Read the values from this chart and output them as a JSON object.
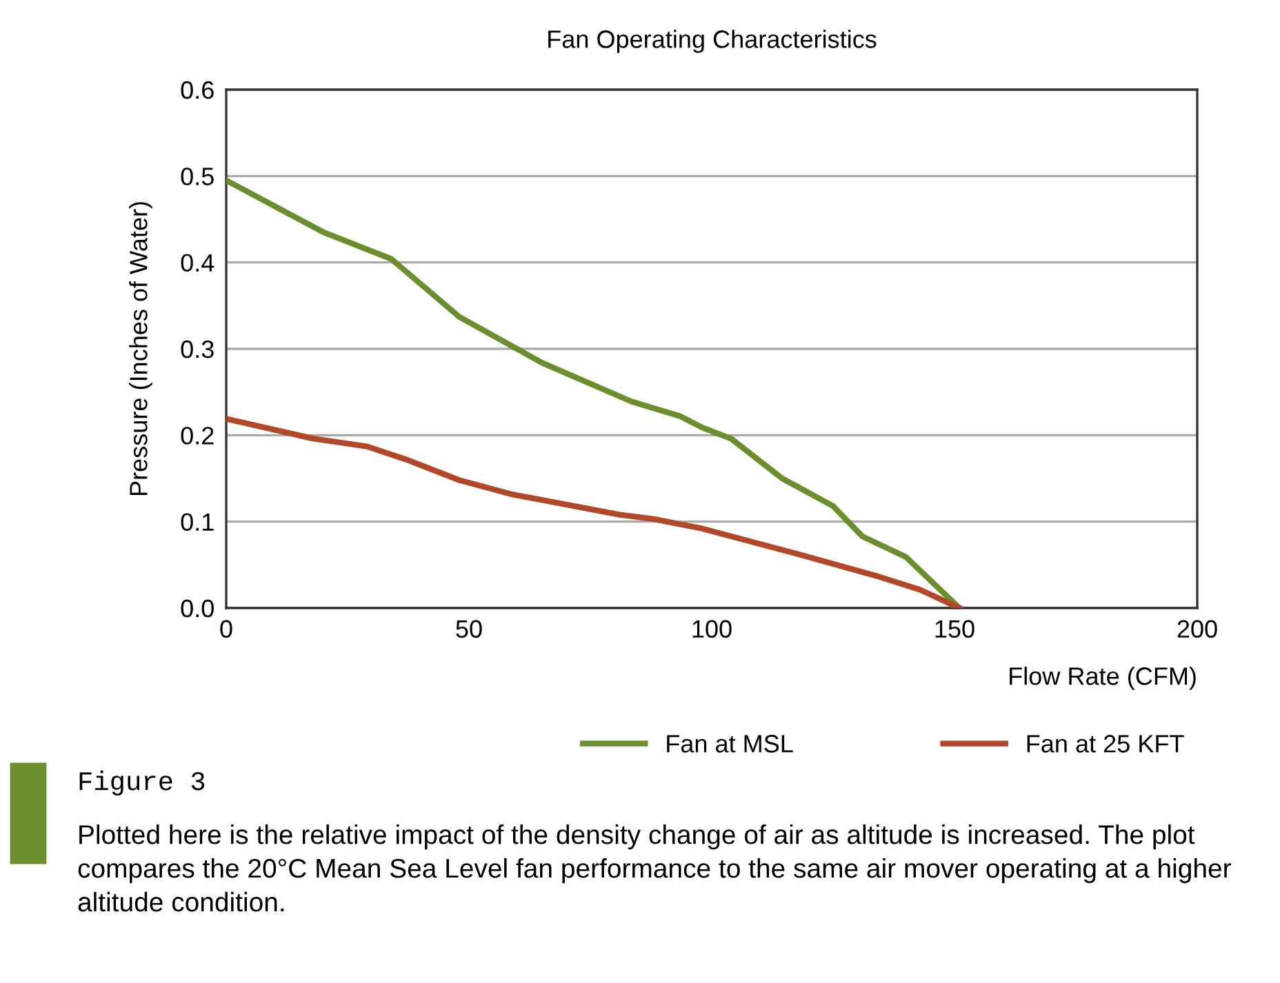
{
  "chart_data": {
    "type": "line",
    "title": "Fan Operating Characteristics",
    "xlabel": "Flow Rate (CFM)",
    "ylabel": "Pressure (Inches of Water)",
    "xlim": [
      0,
      200
    ],
    "xticks": [
      0,
      50,
      100,
      150,
      200
    ],
    "ylim": [
      0,
      0.6
    ],
    "yticks": [
      {
        "value": 0,
        "label": "0.0"
      },
      {
        "value": 0.1,
        "label": "0.1"
      },
      {
        "value": 0.2,
        "label": "0.2"
      },
      {
        "value": 0.3,
        "label": "0.3"
      },
      {
        "value": 0.4,
        "label": "0.4"
      },
      {
        "value": 0.5,
        "label": "0.5"
      },
      {
        "value": 0.6,
        "label": "0.6"
      }
    ],
    "grid": "y",
    "legend": "bottom",
    "series": [
      {
        "name": "Fan at MSL",
        "color": "#6b8e2e",
        "x": [
          0,
          20,
          34,
          48,
          65,
          83.5,
          93.5,
          98,
          104,
          114.5,
          125,
          131,
          140,
          151
        ],
        "values": [
          0.495,
          0.435,
          0.404,
          0.337,
          0.284,
          0.239,
          0.222,
          0.209,
          0.196,
          0.15,
          0.118,
          0.083,
          0.059,
          0
        ]
      },
      {
        "name": "Fan at 25 KFT",
        "color": "#b2472a",
        "x": [
          0,
          18,
          29,
          37,
          48,
          58.5,
          81,
          88,
          98,
          102,
          118,
          134,
          143,
          151
        ],
        "values": [
          0.219,
          0.196,
          0.187,
          0.172,
          0.148,
          0.132,
          0.108,
          0.103,
          0.092,
          0.086,
          0.062,
          0.037,
          0.021,
          0
        ]
      }
    ],
    "annotations": [
      "Figure 3",
      "Plotted here is the relative impact of the density change of air as altitude is increased. The plot compares the 20°C Mean Sea Level fan performance to the same air mover operating at a higher altitude condition."
    ]
  }
}
